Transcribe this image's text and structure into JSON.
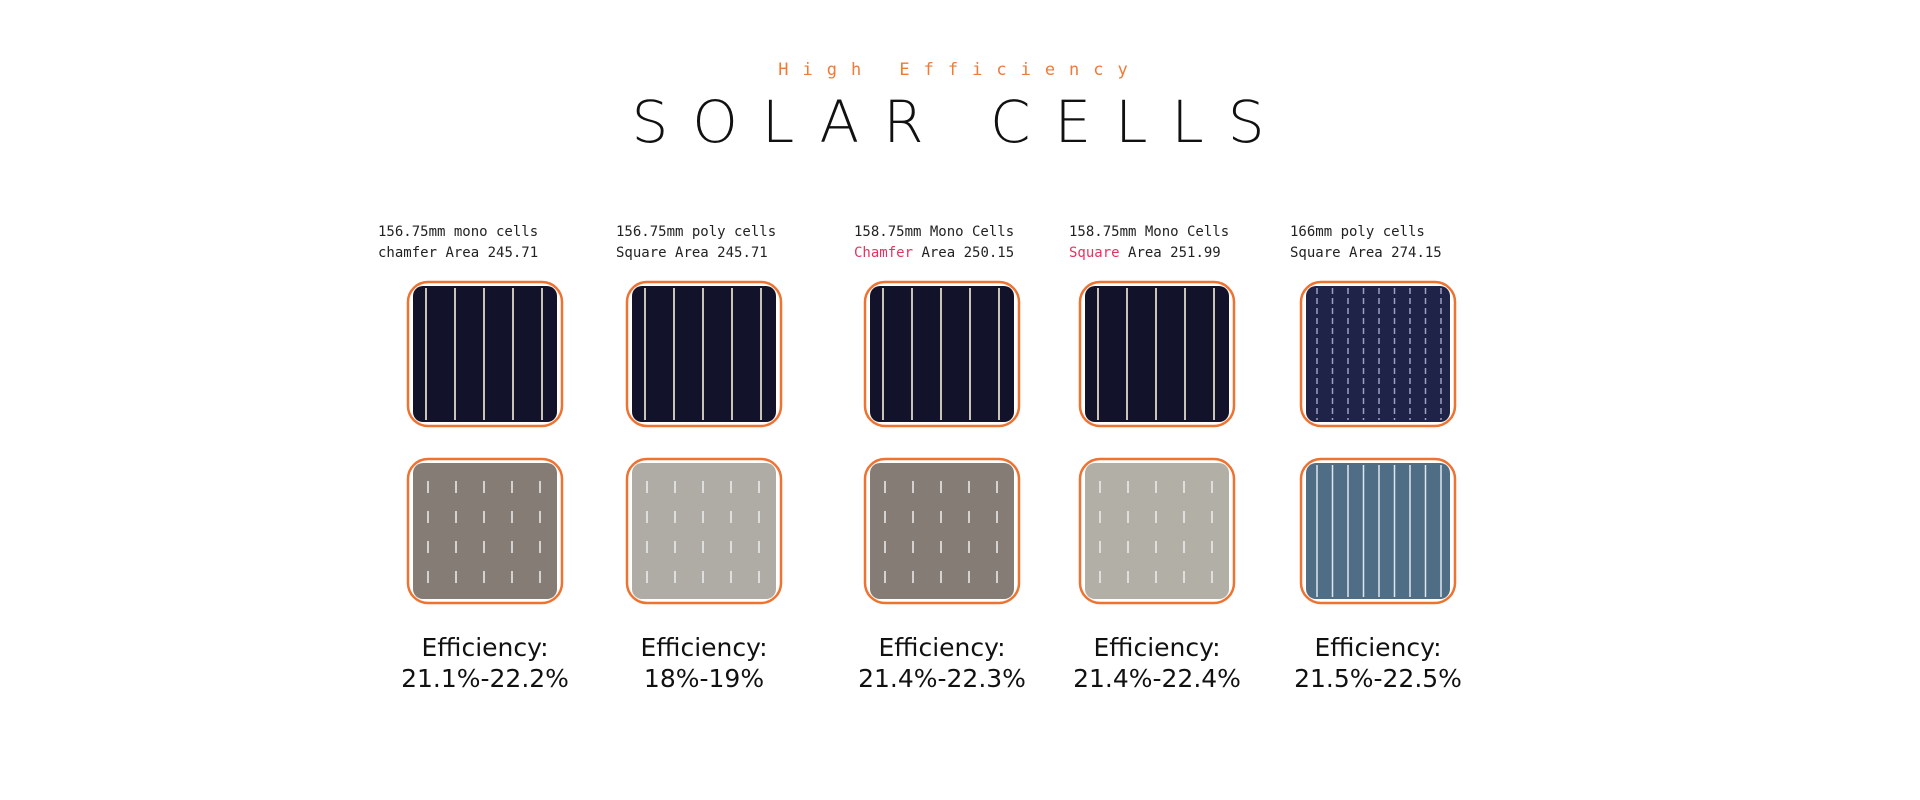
{
  "header": {
    "subtitle": "High Efficiency",
    "title": "SOLAR CELLS"
  },
  "cells": [
    {
      "size": "156.75mm mono cells",
      "shape": "chamfer",
      "area": "Area 245.71",
      "highlight": false,
      "efficiency_label": "Efficiency:",
      "efficiency": "21.1%-22.2%"
    },
    {
      "size": "156.75mm poly cells",
      "shape": "Square",
      "area": "Area 245.71",
      "highlight": false,
      "efficiency_label": "Efficiency:",
      "efficiency": "18%-19%"
    },
    {
      "size": "158.75mm Mono Cells",
      "shape": "Chamfer",
      "area": "Area 250.15",
      "highlight": true,
      "efficiency_label": "Efficiency:",
      "efficiency": "21.4%-22.3%"
    },
    {
      "size": "158.75mm Mono Cells",
      "shape": "Square",
      "area": "Area 251.99",
      "highlight": true,
      "efficiency_label": "Efficiency:",
      "efficiency": "21.4%-22.4%"
    },
    {
      "size": "166mm poly cells",
      "shape": "Square",
      "area": "Area 274.15",
      "highlight": false,
      "efficiency_label": "Efficiency:",
      "efficiency": "21.5%-22.5%"
    }
  ]
}
